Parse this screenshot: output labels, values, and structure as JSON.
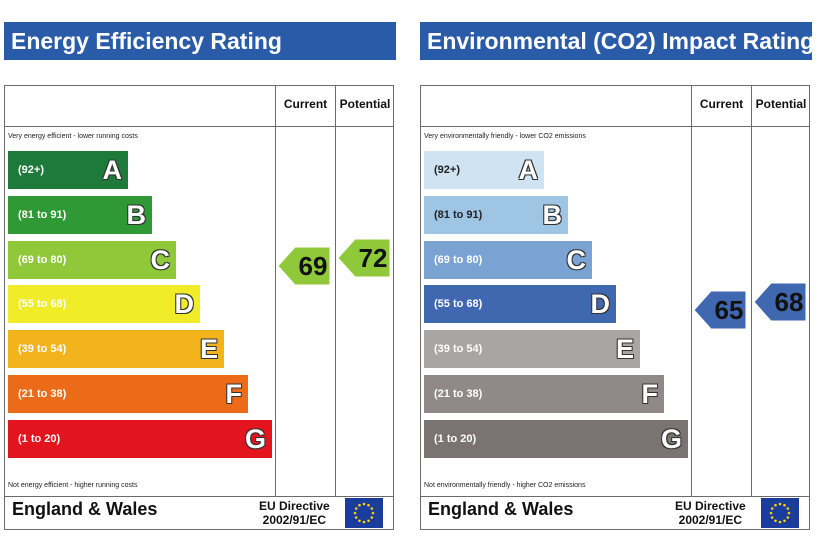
{
  "chart_data": [
    {
      "type": "bar",
      "title": "Energy Efficiency Rating",
      "columns": [
        "Current",
        "Potential"
      ],
      "top_note": "Very energy efficient - lower running costs",
      "bottom_note": "Not energy efficient - higher running costs",
      "bands": [
        {
          "range": "(92+)",
          "letter": "A",
          "color": "#1d7a3a",
          "light": false
        },
        {
          "range": "(81 to 91)",
          "letter": "B",
          "color": "#2f9a35",
          "light": false
        },
        {
          "range": "(69 to 80)",
          "letter": "C",
          "color": "#8fc93a",
          "light": false
        },
        {
          "range": "(55 to 68)",
          "letter": "D",
          "color": "#f0ec28",
          "light": false
        },
        {
          "range": "(39 to 54)",
          "letter": "E",
          "color": "#f3b31c",
          "light": false
        },
        {
          "range": "(21 to 38)",
          "letter": "F",
          "color": "#ec6b18",
          "light": false
        },
        {
          "range": "(1 to 20)",
          "letter": "G",
          "color": "#e3141e",
          "light": false
        }
      ],
      "current": {
        "value": 69,
        "band": "C",
        "color": "#8fc93a"
      },
      "potential": {
        "value": 72,
        "band": "C",
        "color": "#8fc93a"
      },
      "footer": {
        "region": "England & Wales",
        "directive_line1": "EU Directive",
        "directive_line2": "2002/91/EC"
      }
    },
    {
      "type": "bar",
      "title": "Environmental (CO2) Impact Rating",
      "columns": [
        "Current",
        "Potential"
      ],
      "top_note": "Very environmentally friendly - lower CO2 emissions",
      "bottom_note": "Not environmentally friendly - higher CO2 emissions",
      "bands": [
        {
          "range": "(92+)",
          "letter": "A",
          "color": "#cfe3f2",
          "light": true
        },
        {
          "range": "(81 to 91)",
          "letter": "B",
          "color": "#9ec5e3",
          "light": true
        },
        {
          "range": "(69 to 80)",
          "letter": "C",
          "color": "#7aa3d4",
          "light": false
        },
        {
          "range": "(55 to 68)",
          "letter": "D",
          "color": "#3f68b1",
          "light": false
        },
        {
          "range": "(39 to 54)",
          "letter": "E",
          "color": "#a8a5a3",
          "light": false
        },
        {
          "range": "(21 to 38)",
          "letter": "F",
          "color": "#8f8a88",
          "light": false
        },
        {
          "range": "(1 to 20)",
          "letter": "G",
          "color": "#7a7371",
          "light": false
        }
      ],
      "current": {
        "value": 65,
        "band": "D",
        "color": "#3f68b1"
      },
      "potential": {
        "value": 68,
        "band": "D",
        "color": "#3f68b1"
      },
      "footer": {
        "region": "England & Wales",
        "directive_line1": "EU Directive",
        "directive_line2": "2002/91/EC"
      }
    }
  ]
}
